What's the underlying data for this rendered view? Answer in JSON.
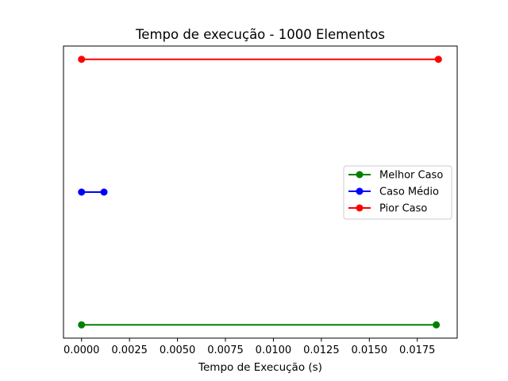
{
  "chart_data": {
    "type": "line",
    "title": "Tempo de execução - 1000 Elementos",
    "xlabel": "Tempo de Execução (s)",
    "ylabel": "",
    "xlim": [
      -0.00094,
      0.01958
    ],
    "ylim": [
      -0.1,
      2.1
    ],
    "x_ticks": [
      0.0,
      0.0025,
      0.005,
      0.0075,
      0.01,
      0.0125,
      0.015,
      0.0175
    ],
    "x_tick_labels": [
      "0.0000",
      "0.0025",
      "0.0050",
      "0.0075",
      "0.0100",
      "0.0125",
      "0.0150",
      "0.0175"
    ],
    "y_ticks_visible": false,
    "grid": false,
    "legend_position": "center-right",
    "series": [
      {
        "name": "Melhor Caso",
        "color": "#008000",
        "points": [
          [
            0.0,
            0
          ],
          [
            0.01849,
            0
          ]
        ]
      },
      {
        "name": "Caso Médio",
        "color": "#0000ff",
        "points": [
          [
            0.0,
            1
          ],
          [
            0.00117,
            1
          ]
        ]
      },
      {
        "name": "Pior Caso",
        "color": "#ff0000",
        "points": [
          [
            0.0,
            2
          ],
          [
            0.0186,
            2
          ]
        ]
      }
    ]
  }
}
